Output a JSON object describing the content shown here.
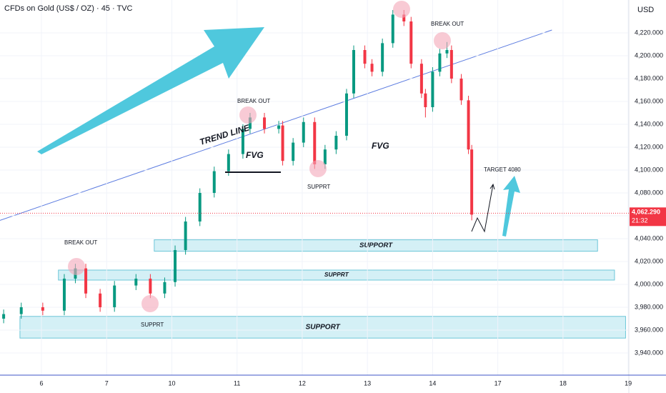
{
  "chart_data": {
    "type": "candlestick",
    "title": "CFDs on Gold (US$ / OZ) · 45 · TVC",
    "y_axis_label": "USD",
    "xlim": [
      -0.636,
      9.01
    ],
    "ylim": [
      3920.6,
      4248.75
    ],
    "xticks": [
      {
        "value": 0,
        "label": "6"
      },
      {
        "value": 1,
        "label": "7"
      },
      {
        "value": 2,
        "label": "10"
      },
      {
        "value": 3,
        "label": "11"
      },
      {
        "value": 4,
        "label": "12"
      },
      {
        "value": 5,
        "label": "13"
      },
      {
        "value": 6,
        "label": "14"
      },
      {
        "value": 7,
        "label": "17"
      },
      {
        "value": 8,
        "label": "18"
      },
      {
        "value": 9,
        "label": "19"
      }
    ],
    "yticks": [
      {
        "value": 3940,
        "label": "3,940.000"
      },
      {
        "value": 3960,
        "label": "3,960.000"
      },
      {
        "value": 3980,
        "label": "3,980.000"
      },
      {
        "value": 4000,
        "label": "4,000.000"
      },
      {
        "value": 4020,
        "label": "4,020.000"
      },
      {
        "value": 4040,
        "label": "4,040.000"
      },
      {
        "value": 4060,
        "label": "4,060.000"
      },
      {
        "value": 4080,
        "label": "4,080.000"
      },
      {
        "value": 4100,
        "label": "4,100.000"
      },
      {
        "value": 4120,
        "label": "4,120.000"
      },
      {
        "value": 4140,
        "label": "4,140.000"
      },
      {
        "value": 4160,
        "label": "4,160.000"
      },
      {
        "value": 4180,
        "label": "4,180.000"
      },
      {
        "value": 4200,
        "label": "4,200.000"
      },
      {
        "value": 4220,
        "label": "4,220.000"
      }
    ],
    "up_color": "#089981",
    "down_color": "#f23645",
    "x": [
      -0.58,
      -0.31,
      0.02,
      0.35,
      0.52,
      0.68,
      0.9,
      1.12,
      1.45,
      1.67,
      1.89,
      2.05,
      2.21,
      2.43,
      2.65,
      2.87,
      3.09,
      3.2,
      3.42,
      3.64,
      3.7,
      3.86,
      4.02,
      4.19,
      4.35,
      4.52,
      4.68,
      4.79,
      4.96,
      5.07,
      5.23,
      5.39,
      5.56,
      5.67,
      5.83,
      5.89,
      6.0,
      6.11,
      6.22,
      6.29,
      6.44,
      6.55,
      6.6
    ],
    "open": [
      3970,
      3974,
      3980,
      3977,
      4005,
      4014,
      3992,
      3980,
      3999,
      4005,
      3992,
      4002,
      4030,
      4055,
      4080,
      4099,
      4114,
      4136,
      4146,
      4136,
      4139,
      4108,
      4124,
      4142,
      4105,
      4118,
      4130,
      4167,
      4205,
      4193,
      4186,
      4211,
      4236,
      4230,
      4193,
      4167,
      4155,
      4186,
      4202,
      4205,
      4180,
      4161,
      4118
    ],
    "high": [
      3978,
      3984,
      3984,
      4009,
      4018,
      4018,
      3996,
      4003,
      4009,
      4009,
      4006,
      4034,
      4059,
      4084,
      4103,
      4118,
      4140,
      4150,
      4150,
      4143,
      4143,
      4128,
      4146,
      4146,
      4122,
      4134,
      4171,
      4209,
      4209,
      4197,
      4215,
      4240,
      4240,
      4234,
      4197,
      4171,
      4190,
      4206,
      4212,
      4209,
      4184,
      4165,
      4122
    ],
    "low": [
      3966,
      3970,
      3973,
      3973,
      4001,
      3988,
      3976,
      3976,
      3995,
      3988,
      3988,
      3998,
      4026,
      4051,
      4076,
      4095,
      4110,
      4132,
      4132,
      4132,
      4104,
      4104,
      4120,
      4101,
      4101,
      4114,
      4126,
      4163,
      4189,
      4182,
      4182,
      4207,
      4226,
      4189,
      4163,
      4146,
      4151,
      4182,
      4198,
      4176,
      4157,
      4114,
      4056
    ],
    "close": [
      3974,
      3980,
      3977,
      4005,
      4014,
      3992,
      3980,
      3999,
      4005,
      3992,
      4002,
      4030,
      4055,
      4080,
      4099,
      4114,
      4136,
      4146,
      4136,
      4139,
      4108,
      4124,
      4142,
      4105,
      4118,
      4130,
      4167,
      4205,
      4193,
      4186,
      4211,
      4236,
      4230,
      4193,
      4167,
      4155,
      4186,
      4202,
      4205,
      4180,
      4161,
      4118,
      4061
    ],
    "last_price": {
      "value": 4062.29,
      "label": "4,062.290"
    },
    "countdown": "21:32",
    "trend_line": {
      "x": [
        -0.636,
        7.83
      ],
      "y": [
        4056,
        4222.5
      ]
    },
    "zones": [
      {
        "label": "SUPPORT",
        "x": [
          1.73,
          8.53
        ],
        "y": [
          4029,
          4039
        ]
      },
      {
        "label": "SUPPRT",
        "x": [
          0.26,
          8.79
        ],
        "y": [
          4003.75,
          4012.5
        ]
      },
      {
        "label": "SUPPORT",
        "x": [
          -0.33,
          8.96
        ],
        "y": [
          3953,
          3972
        ]
      }
    ],
    "annotations": [
      "BREAK OUT",
      "BREAK OUT",
      "BREAK OUT",
      "SUPPRT",
      "SUPPRT",
      "TREND LINE",
      "FVG",
      "FVG",
      "TARGET 4080"
    ]
  }
}
